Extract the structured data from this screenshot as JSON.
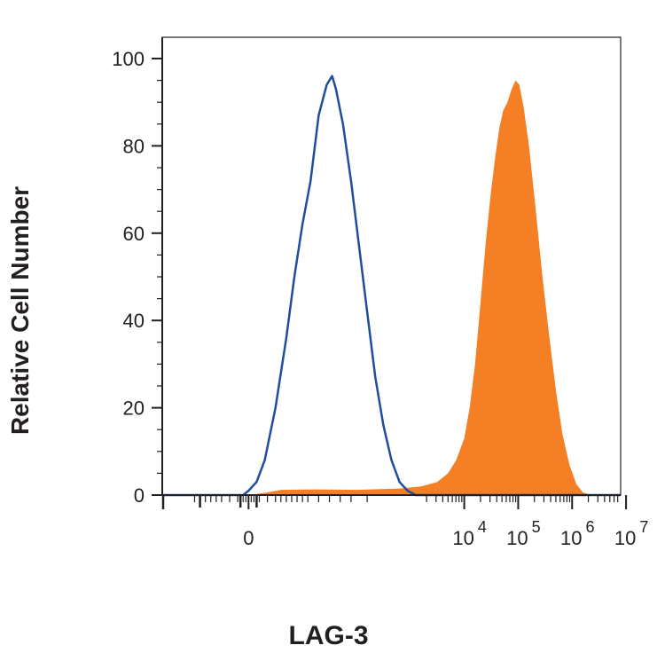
{
  "chart_data": {
    "type": "area",
    "title": "",
    "xlabel": "LAG-3",
    "ylabel": "Relative Cell Number",
    "x_scale": "biexponential",
    "x_tick_labels": [
      {
        "base": "0",
        "exp": ""
      },
      {
        "base": "10",
        "exp": "4"
      },
      {
        "base": "10",
        "exp": "5"
      },
      {
        "base": "10",
        "exp": "6"
      },
      {
        "base": "10",
        "exp": "7"
      }
    ],
    "y_ticks": [
      0,
      20,
      40,
      60,
      80,
      100
    ],
    "ylim": [
      0,
      100
    ],
    "grid": false,
    "legend": "none",
    "series": [
      {
        "style": "outline",
        "color": "#1f4e9c",
        "points": [
          [
            -1.6,
            0
          ],
          [
            -0.1,
            0
          ],
          [
            0.0,
            1
          ],
          [
            0.15,
            3
          ],
          [
            0.3,
            8
          ],
          [
            0.5,
            20
          ],
          [
            0.7,
            36
          ],
          [
            0.85,
            50
          ],
          [
            1.0,
            62
          ],
          [
            1.15,
            72
          ],
          [
            1.3,
            87
          ],
          [
            1.45,
            94
          ],
          [
            1.55,
            96
          ],
          [
            1.62,
            93
          ],
          [
            1.75,
            85
          ],
          [
            1.9,
            72
          ],
          [
            2.05,
            57
          ],
          [
            2.2,
            42
          ],
          [
            2.35,
            27
          ],
          [
            2.5,
            16
          ],
          [
            2.65,
            8
          ],
          [
            2.8,
            3
          ],
          [
            2.95,
            1
          ],
          [
            3.1,
            0
          ],
          [
            6.9,
            0
          ]
        ]
      },
      {
        "style": "filled",
        "color": "#f47f24",
        "points": [
          [
            -1.6,
            0
          ],
          [
            0.0,
            0
          ],
          [
            0.3,
            0.5
          ],
          [
            0.6,
            1.2
          ],
          [
            1.2,
            1.3
          ],
          [
            2.0,
            1.2
          ],
          [
            2.8,
            1.5
          ],
          [
            3.2,
            2
          ],
          [
            3.5,
            3
          ],
          [
            3.7,
            5
          ],
          [
            3.85,
            8
          ],
          [
            4.0,
            13
          ],
          [
            4.1,
            20
          ],
          [
            4.2,
            30
          ],
          [
            4.3,
            44
          ],
          [
            4.4,
            58
          ],
          [
            4.5,
            70
          ],
          [
            4.58,
            78
          ],
          [
            4.65,
            84
          ],
          [
            4.72,
            88
          ],
          [
            4.8,
            90
          ],
          [
            4.88,
            93
          ],
          [
            4.95,
            95
          ],
          [
            5.02,
            94
          ],
          [
            5.1,
            89
          ],
          [
            5.2,
            80
          ],
          [
            5.32,
            66
          ],
          [
            5.45,
            50
          ],
          [
            5.58,
            36
          ],
          [
            5.7,
            24
          ],
          [
            5.82,
            14
          ],
          [
            5.95,
            7
          ],
          [
            6.08,
            2.5
          ],
          [
            6.2,
            0.6
          ],
          [
            6.35,
            0
          ],
          [
            6.9,
            0
          ]
        ]
      }
    ]
  }
}
